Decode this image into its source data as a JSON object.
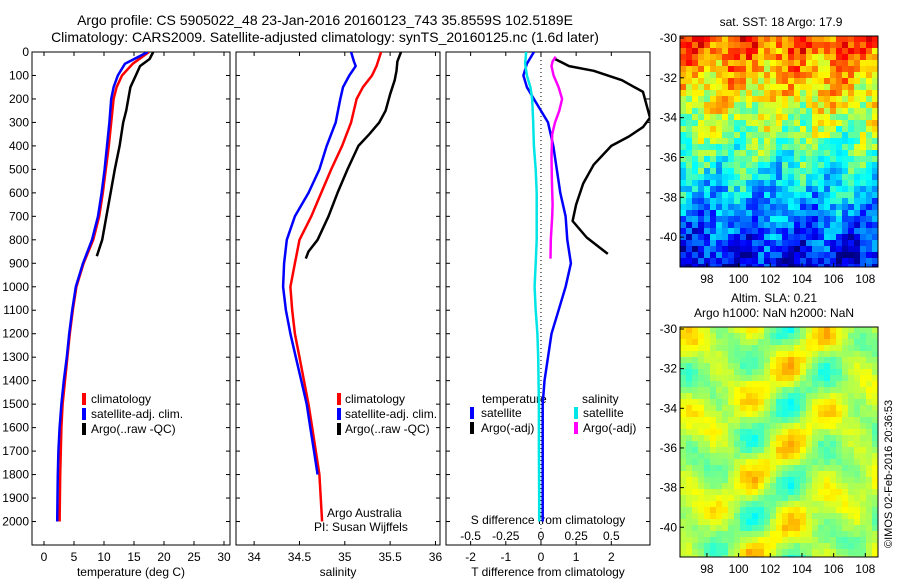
{
  "header": {
    "title_line1": "Argo profile: CS 5905022_48 23-Jan-2016 20160123_743 35.8559S 102.5189E",
    "title_line2": "Climatology: CARS2009. Satellite-adjusted climatology: synTS_20160125.nc (1.6d later)"
  },
  "colors": {
    "climatology": "#ff0000",
    "satellite": "#0000ff",
    "argo": "#000000",
    "sat_salinity": "#00e5e5",
    "argo_salinity": "#ff00ff"
  },
  "chart_data": [
    {
      "id": "temperature",
      "type": "line",
      "xlabel": "temperature (deg C)",
      "ylabel": "",
      "xlim": [
        -2,
        31
      ],
      "ylim": [
        2100,
        0
      ],
      "xticks": [
        0,
        5,
        10,
        15,
        20,
        25,
        30
      ],
      "yticks": [
        0,
        100,
        200,
        300,
        400,
        500,
        600,
        700,
        800,
        900,
        1000,
        1100,
        1200,
        1300,
        1400,
        1500,
        1600,
        1700,
        1800,
        1900,
        2000
      ],
      "legend": [
        "climatology",
        "satellite-adj. clim.",
        "Argo(..raw -QC)"
      ],
      "series": [
        {
          "name": "climatology",
          "color": "#ff0000",
          "x": [
            17.5,
            14.8,
            13,
            12.1,
            11.6,
            11.2,
            10.8,
            10.3,
            9.8,
            9.2,
            8.2,
            6.6,
            5.4,
            4.8,
            4.3,
            3.9,
            3.5,
            3.1,
            2.9,
            2.8,
            2.7,
            2.6
          ],
          "y": [
            0,
            50,
            100,
            150,
            200,
            300,
            400,
            500,
            600,
            700,
            800,
            900,
            1000,
            1100,
            1200,
            1300,
            1400,
            1500,
            1600,
            1700,
            1800,
            2000
          ]
        },
        {
          "name": "satellite-adj. clim.",
          "color": "#0000ff",
          "x": [
            17.3,
            13.5,
            12.3,
            11.6,
            11.2,
            10.9,
            10.5,
            10.1,
            9.6,
            9,
            8,
            6.5,
            5.3,
            4.7,
            4.2,
            3.8,
            3.3,
            2.9,
            2.6,
            2.4,
            2.3,
            2.2
          ],
          "y": [
            0,
            50,
            100,
            150,
            200,
            300,
            400,
            500,
            600,
            700,
            800,
            900,
            1000,
            1100,
            1200,
            1300,
            1400,
            1500,
            1600,
            1700,
            1800,
            2000
          ]
        },
        {
          "name": "Argo(..raw -QC)",
          "color": "#000000",
          "x": [
            18.2,
            17.6,
            16,
            15.3,
            14.4,
            13.7,
            13.2,
            12.6,
            11.8,
            11.1,
            10.4,
            9.7,
            8.8
          ],
          "y": [
            0,
            30,
            60,
            100,
            150,
            250,
            300,
            400,
            500,
            600,
            700,
            800,
            870
          ]
        }
      ],
      "annotation": []
    },
    {
      "id": "salinity",
      "type": "line",
      "xlabel": "salinity",
      "ylabel": "",
      "xlim": [
        33.8,
        36.05
      ],
      "ylim": [
        2100,
        0
      ],
      "xticks": [
        34,
        34.5,
        35,
        35.5,
        36
      ],
      "xtick_labels": [
        "34",
        "34.5",
        "35",
        "35.5",
        "36"
      ],
      "legend": [
        "climatology",
        "satellite-adj. clim.",
        "Argo(..raw -QC)"
      ],
      "series": [
        {
          "name": "climatology",
          "color": "#ff0000",
          "x": [
            35.4,
            35.35,
            35.3,
            35.2,
            35.13,
            35.07,
            34.97,
            34.85,
            34.74,
            34.63,
            34.5,
            34.45,
            34.4,
            34.42,
            34.45,
            34.5,
            34.55,
            34.6,
            34.64,
            34.68,
            34.72,
            34.75
          ],
          "y": [
            0,
            60,
            100,
            150,
            200,
            300,
            400,
            500,
            600,
            700,
            800,
            900,
            1000,
            1100,
            1200,
            1300,
            1400,
            1500,
            1600,
            1700,
            1800,
            2000
          ]
        },
        {
          "name": "satellite-adj. clim.",
          "color": "#0000ff",
          "x": [
            35.07,
            35.1,
            35.12,
            35.05,
            34.98,
            34.95,
            34.9,
            34.8,
            34.72,
            34.6,
            34.45,
            34.36,
            34.33,
            34.32,
            34.35,
            34.4,
            34.46,
            34.52,
            34.58,
            34.62,
            34.66,
            34.7
          ],
          "y": [
            0,
            40,
            60,
            100,
            150,
            200,
            300,
            400,
            500,
            600,
            700,
            800,
            900,
            1000,
            1100,
            1200,
            1300,
            1400,
            1500,
            1600,
            1700,
            1800
          ]
        },
        {
          "name": "Argo(..raw -QC)",
          "color": "#000000",
          "x": [
            35.62,
            35.58,
            35.57,
            35.55,
            35.5,
            35.45,
            35.38,
            35.27,
            35.15,
            35.03,
            34.92,
            34.82,
            34.7,
            34.6,
            34.57
          ],
          "y": [
            0,
            40,
            80,
            120,
            180,
            250,
            300,
            350,
            400,
            500,
            600,
            700,
            800,
            850,
            880
          ]
        }
      ],
      "annotation": [
        "Argo Australia",
        "PI: Susan Wijffels"
      ]
    },
    {
      "id": "difference",
      "type": "line",
      "xlabel": "T difference from climatology",
      "xlabel2": "S difference from climatology",
      "xlim": [
        -2.7,
        3.1
      ],
      "ylim": [
        2100,
        0
      ],
      "xticks": [
        -2,
        -1,
        0,
        1,
        2
      ],
      "xticks2": [
        -0.5,
        -0.25,
        0,
        0.25,
        0.5
      ],
      "xtick2_labels": [
        "-0.5",
        "-0.25",
        "0",
        "0.25",
        "0.5"
      ],
      "legend_headers": [
        "temperature",
        "salinity"
      ],
      "legend": [
        "satellite",
        "Argo(-adj)",
        "satellite",
        "Argo(-adj)"
      ],
      "series": [
        {
          "name": "satellite",
          "color": "#0000ff",
          "x": [
            -0.2,
            -0.4,
            -0.5,
            -0.4,
            -0.2,
            0.2,
            0.35,
            0.45,
            0.55,
            0.7,
            0.75,
            0.85,
            0.7,
            0.5,
            0.3,
            0.2,
            0.1,
            0.05,
            0.05,
            0.05,
            0.05
          ],
          "y": [
            0,
            50,
            100,
            150,
            200,
            300,
            400,
            500,
            600,
            700,
            800,
            900,
            1000,
            1100,
            1200,
            1300,
            1400,
            1500,
            1600,
            1700,
            2000
          ]
        },
        {
          "name": "Argo(-adj)",
          "color": "#000000",
          "x": [
            0.4,
            0.8,
            1.5,
            2.3,
            2.9,
            3.1,
            2.9,
            2.5,
            2.0,
            1.5,
            1.2,
            1.0,
            0.9,
            1.3,
            1.9
          ],
          "y": [
            30,
            60,
            80,
            120,
            170,
            280,
            320,
            360,
            400,
            480,
            560,
            650,
            720,
            790,
            860
          ]
        },
        {
          "name": "satellite",
          "color": "#00e5e5",
          "x": [
            -0.42,
            -0.45,
            -0.4,
            -0.3,
            -0.25,
            -0.22,
            -0.2,
            -0.15,
            -0.12,
            -0.12,
            -0.12,
            -0.15,
            -0.18,
            -0.15,
            -0.1,
            -0.08,
            -0.06,
            -0.06,
            -0.05,
            -0.05
          ],
          "y": [
            0,
            50,
            100,
            150,
            200,
            300,
            400,
            500,
            600,
            700,
            800,
            900,
            1000,
            1100,
            1200,
            1300,
            1500,
            1700,
            1900,
            2000
          ]
        },
        {
          "name": "Argo(-adj)",
          "color": "#ff00ff",
          "x": [
            0.42,
            0.33,
            0.3,
            0.36,
            0.5,
            0.6,
            0.52,
            0.4,
            0.32,
            0.3,
            0.31,
            0.33,
            0.32,
            0.3,
            0.28,
            0.27
          ],
          "y": [
            20,
            40,
            60,
            100,
            150,
            200,
            250,
            300,
            350,
            450,
            550,
            650,
            700,
            750,
            800,
            880
          ]
        }
      ]
    },
    {
      "id": "sst_map",
      "type": "heatmap",
      "title": "sat. SST: 18 Argo: 17.9",
      "xlim": [
        96.3,
        108.8
      ],
      "ylim": [
        -41.5,
        -29.9
      ],
      "xticks": [
        98,
        100,
        102,
        104,
        106,
        108
      ],
      "yticks": [
        -30,
        -32,
        -34,
        -36,
        -38,
        -40
      ]
    },
    {
      "id": "sla_map",
      "type": "heatmap",
      "title": "Altim. SLA: 0.21",
      "title2": "Argo h1000: NaN h2000: NaN",
      "xlim": [
        96.3,
        108.8
      ],
      "ylim": [
        -41.5,
        -29.9
      ],
      "xticks": [
        98,
        100,
        102,
        104,
        106,
        108
      ],
      "yticks": [
        -30,
        -32,
        -34,
        -36,
        -38,
        -40
      ]
    }
  ],
  "footer": {
    "stamp": "©IMOS 02-Feb-2016 20:36:53"
  }
}
